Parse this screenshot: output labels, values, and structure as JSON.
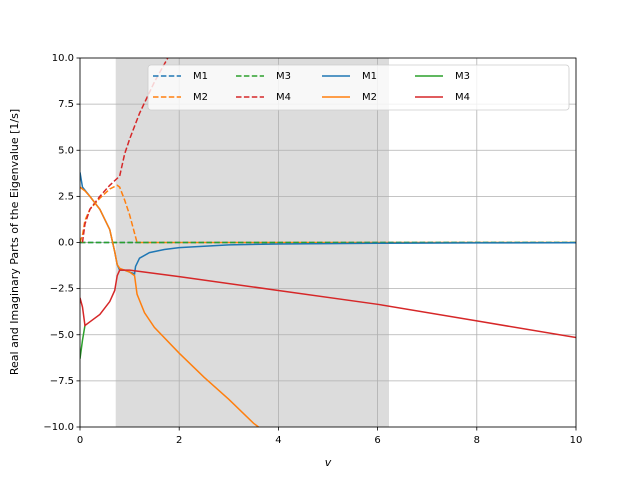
{
  "chart_data": {
    "type": "line",
    "xlabel": "v",
    "ylabel": "Real and Imaginary Parts of the Eigenvalue [1/s]",
    "xlim": [
      0,
      10
    ],
    "ylim": [
      -10,
      10
    ],
    "xticks": [
      0,
      2,
      4,
      6,
      8,
      10
    ],
    "yticks": [
      {
        "value": -10,
        "label": "−10.0"
      },
      {
        "value": -7.5,
        "label": "−7.5"
      },
      {
        "value": -5,
        "label": "−5.0"
      },
      {
        "value": -2.5,
        "label": "−2.5"
      },
      {
        "value": 0,
        "label": "0.0"
      },
      {
        "value": 2.5,
        "label": "2.5"
      },
      {
        "value": 5,
        "label": "5.0"
      },
      {
        "value": 7.5,
        "label": "7.5"
      },
      {
        "value": 10,
        "label": "10.0"
      }
    ],
    "grid": true,
    "legend": "upper right",
    "shaded_xrange": [
      0.72,
      6.23
    ],
    "series": [
      {
        "name": "M1",
        "color": "#1f77b4",
        "style": "dashed",
        "x": [
          0,
          10
        ],
        "values": [
          0,
          0
        ]
      },
      {
        "name": "M2",
        "color": "#ff7f0e",
        "style": "dashed",
        "x": [
          0,
          0.05,
          0.1,
          0.2,
          0.4,
          0.6,
          0.75,
          0.8,
          0.9,
          1.0,
          1.1,
          1.15,
          10
        ],
        "values": [
          0,
          0.4,
          1.2,
          1.8,
          2.4,
          2.9,
          3.1,
          3.0,
          2.3,
          1.5,
          0.5,
          0,
          0
        ]
      },
      {
        "name": "M3",
        "color": "#2ca02c",
        "style": "dashed",
        "x": [
          0,
          10
        ],
        "values": [
          0,
          0
        ]
      },
      {
        "name": "M4",
        "color": "#d62728",
        "style": "dashed",
        "x": [
          0.05,
          0.1,
          0.2,
          0.4,
          0.6,
          0.8,
          0.9,
          1.0,
          1.2,
          1.5,
          1.77
        ],
        "values": [
          0,
          1.0,
          1.8,
          2.5,
          3.1,
          3.6,
          4.8,
          5.6,
          7.0,
          8.7,
          10
        ]
      },
      {
        "name": "M1",
        "color": "#1f77b4",
        "style": "solid",
        "x": [
          0,
          0.05,
          0.2,
          0.4,
          0.6,
          0.7,
          0.75,
          0.8,
          0.9,
          1.0,
          1.1,
          1.12,
          1.2,
          1.4,
          1.7,
          2,
          3,
          4,
          6,
          8,
          10
        ],
        "values": [
          3.8,
          3.0,
          2.5,
          1.8,
          0.7,
          -0.5,
          -1.2,
          -1.5,
          -1.5,
          -1.6,
          -1.7,
          -1.3,
          -0.85,
          -0.55,
          -0.38,
          -0.28,
          -0.13,
          -0.08,
          -0.04,
          -0.02,
          -0.015
        ]
      },
      {
        "name": "M2",
        "color": "#ff7f0e",
        "style": "solid",
        "x": [
          0,
          0.1,
          0.2,
          0.4,
          0.6,
          0.7,
          0.75,
          0.8,
          0.9,
          1.0,
          1.1,
          1.15,
          1.3,
          1.5,
          2,
          2.5,
          3,
          3.5,
          3.6
        ],
        "values": [
          3.0,
          2.8,
          2.5,
          1.8,
          0.7,
          -0.5,
          -1.2,
          -1.4,
          -1.5,
          -1.6,
          -1.8,
          -2.8,
          -3.8,
          -4.6,
          -6.0,
          -7.3,
          -8.5,
          -9.8,
          -10
        ]
      },
      {
        "name": "M3",
        "color": "#2ca02c",
        "style": "solid",
        "x": [
          0,
          0.05,
          0.1
        ],
        "values": [
          -6.3,
          -5.3,
          -4.5
        ]
      },
      {
        "name": "M4",
        "color": "#d62728",
        "style": "solid",
        "x": [
          0,
          0.05,
          0.1,
          0.2,
          0.4,
          0.6,
          0.7,
          0.75,
          0.8,
          1,
          2,
          4,
          6,
          8,
          10
        ],
        "values": [
          -3,
          -3.5,
          -4.5,
          -4.3,
          -3.9,
          -3.2,
          -2.6,
          -1.8,
          -1.5,
          -1.5,
          -1.85,
          -2.6,
          -3.35,
          -4.25,
          -5.15
        ]
      }
    ]
  }
}
